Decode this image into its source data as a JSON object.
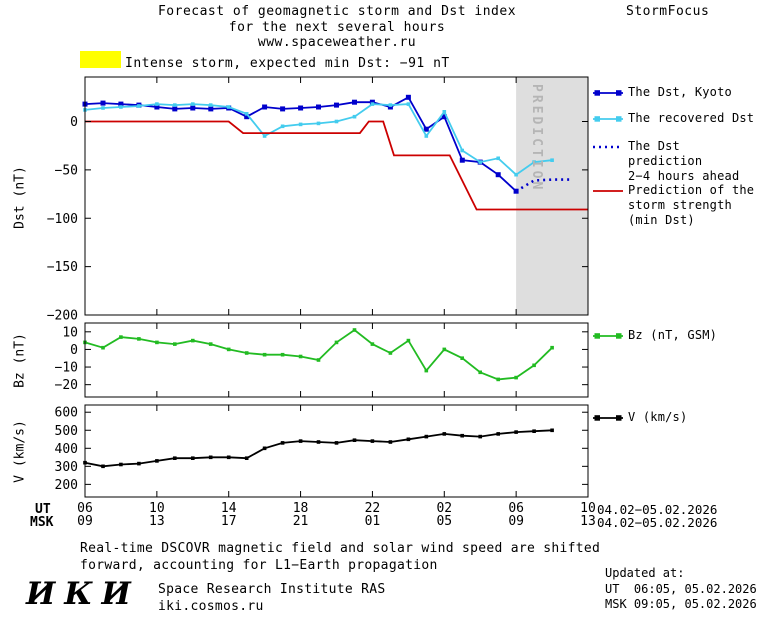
{
  "header": {
    "title_lines": [
      "Forecast of geomagnetic storm and Dst index",
      "for the next several hours",
      "www.spaceweather.ru"
    ],
    "brand": "StormFocus"
  },
  "alert": {
    "swatch_color": "#ffff00",
    "text": "Intense storm, expected min Dst: −91 nT"
  },
  "prediction_band": {
    "label": "PREDICTION",
    "fill": "#dedede",
    "label_color": "#b5b5b5"
  },
  "axis_footer": {
    "ut_label": "UT",
    "msk_label": "MSK",
    "ut_dates": "04.02−05.02.2026",
    "msk_dates": "04.02−05.02.2026"
  },
  "legend": {
    "entries": [
      {
        "label": "The Dst, Kyoto",
        "color": "#0000cc",
        "style": "line-squares"
      },
      {
        "label": "The recovered Dst",
        "color": "#44ccee",
        "style": "line-squares"
      },
      {
        "label": "The Dst prediction\n2−4 hours ahead",
        "color": "#0000cc",
        "style": "dotted"
      },
      {
        "label": "Prediction of the\nstorm strength\n(min Dst)",
        "color": "#cc0000",
        "style": "line"
      },
      {
        "label": "Bz (nT, GSM)",
        "color": "#22bb22",
        "style": "line-squares"
      },
      {
        "label": "V (km/s)",
        "color": "#000000",
        "style": "line-squares"
      }
    ]
  },
  "footnote": {
    "line1": "Real-time DSCOVR magnetic field and solar wind speed are shifted",
    "line2": "forward, accounting for L1−Earth propagation"
  },
  "updated": {
    "label": "Updated at:",
    "ut": "UT  06:05, 05.02.2026",
    "msk": "MSK 09:05, 05.02.2026"
  },
  "institute": {
    "logo": "ИКИ",
    "name": "Space Research Institute RAS",
    "url": "iki.cosmos.ru"
  },
  "chart_data": [
    {
      "type": "line",
      "panel": "dst",
      "title": "",
      "ylabel": "Dst (nT)",
      "ylim": [
        -200,
        46
      ],
      "yticks": [
        0,
        -50,
        -100,
        -150,
        -200
      ],
      "xlim": [
        6,
        34
      ],
      "xticks": [
        6,
        10,
        14,
        18,
        22,
        26,
        30,
        34
      ],
      "prediction_band": {
        "x_start": 30,
        "x_end": 34
      },
      "series": [
        {
          "name": "The Dst, Kyoto",
          "color": "#0000cc",
          "style": "solid",
          "marker": "square",
          "x": [
            6,
            7,
            8,
            9,
            10,
            11,
            12,
            13,
            14,
            15,
            16,
            17,
            18,
            19,
            20,
            21,
            22,
            23,
            24,
            25,
            26,
            27,
            28,
            29,
            30
          ],
          "y": [
            18,
            19,
            18,
            17,
            15,
            13,
            14,
            13,
            14,
            5,
            15,
            13,
            14,
            15,
            17,
            20,
            20,
            15,
            25,
            -8,
            5,
            -40,
            -42,
            -55,
            -72
          ]
        },
        {
          "name": "The recovered Dst",
          "color": "#44ccee",
          "style": "solid",
          "marker": "square",
          "x": [
            6,
            7,
            8,
            9,
            10,
            11,
            12,
            13,
            14,
            15,
            16,
            17,
            18,
            19,
            20,
            21,
            22,
            23,
            24,
            25,
            26,
            27,
            28,
            29,
            30,
            31,
            32
          ],
          "y": [
            12,
            14,
            15,
            16,
            18,
            17,
            18,
            17,
            15,
            8,
            -15,
            -5,
            -3,
            -2,
            0,
            5,
            18,
            17,
            18,
            -15,
            10,
            -30,
            -42,
            -38,
            -55,
            -42,
            -40
          ]
        },
        {
          "name": "The Dst prediction 2−4 hours ahead",
          "color": "#0000cc",
          "style": "dotted",
          "marker": "none",
          "x": [
            30,
            31,
            32,
            33
          ],
          "y": [
            -72,
            -61,
            -60,
            -60
          ]
        },
        {
          "name": "Prediction of the storm strength (min Dst)",
          "color": "#cc0000",
          "style": "solid",
          "marker": "none",
          "x": [
            6,
            14,
            14.8,
            21.3,
            21.8,
            22.6,
            23.2,
            26.3,
            27.8,
            34
          ],
          "y": [
            0,
            0,
            -12,
            -12,
            0,
            0,
            -35,
            -35,
            -91,
            -91
          ]
        }
      ]
    },
    {
      "type": "line",
      "panel": "bz",
      "title": "",
      "ylabel": "Bz (nT)",
      "ylim": [
        -27,
        15
      ],
      "yticks": [
        10,
        0,
        -10,
        -20
      ],
      "xlim": [
        6,
        34
      ],
      "xticks": [
        6,
        10,
        14,
        18,
        22,
        26,
        30,
        34
      ],
      "series": [
        {
          "name": "Bz (nT, GSM)",
          "color": "#22bb22",
          "style": "solid",
          "marker": "square",
          "x": [
            6,
            7,
            8,
            9,
            10,
            11,
            12,
            13,
            14,
            15,
            16,
            17,
            18,
            19,
            20,
            21,
            22,
            23,
            24,
            25,
            26,
            27,
            28,
            29,
            30,
            31,
            32
          ],
          "y": [
            4,
            1,
            7,
            6,
            4,
            3,
            5,
            3,
            0,
            -2,
            -3,
            -3,
            -4,
            -6,
            4,
            11,
            3,
            -2,
            5,
            -12,
            0,
            -5,
            -13,
            -17,
            -16,
            -9,
            1
          ]
        }
      ]
    },
    {
      "type": "line",
      "panel": "v",
      "title": "",
      "ylabel": "V (km/s)",
      "ylim": [
        130,
        640
      ],
      "yticks": [
        600,
        500,
        400,
        300,
        200
      ],
      "xlim": [
        6,
        34
      ],
      "xticks": [
        6,
        10,
        14,
        18,
        22,
        26,
        30,
        34
      ],
      "xtick_labels_ut": [
        "06",
        "10",
        "14",
        "18",
        "22",
        "02",
        "06",
        "10"
      ],
      "xtick_labels_msk": [
        "09",
        "13",
        "17",
        "21",
        "01",
        "05",
        "09",
        "13"
      ],
      "series": [
        {
          "name": "V (km/s)",
          "color": "#000000",
          "style": "solid",
          "marker": "square",
          "x": [
            6,
            7,
            8,
            9,
            10,
            11,
            12,
            13,
            14,
            15,
            16,
            17,
            18,
            19,
            20,
            21,
            22,
            23,
            24,
            25,
            26,
            27,
            28,
            29,
            30,
            31,
            32
          ],
          "y": [
            320,
            300,
            310,
            315,
            330,
            345,
            345,
            350,
            350,
            345,
            400,
            430,
            440,
            435,
            430,
            445,
            440,
            435,
            450,
            465,
            480,
            470,
            465,
            480,
            490,
            495,
            500
          ]
        }
      ]
    }
  ]
}
